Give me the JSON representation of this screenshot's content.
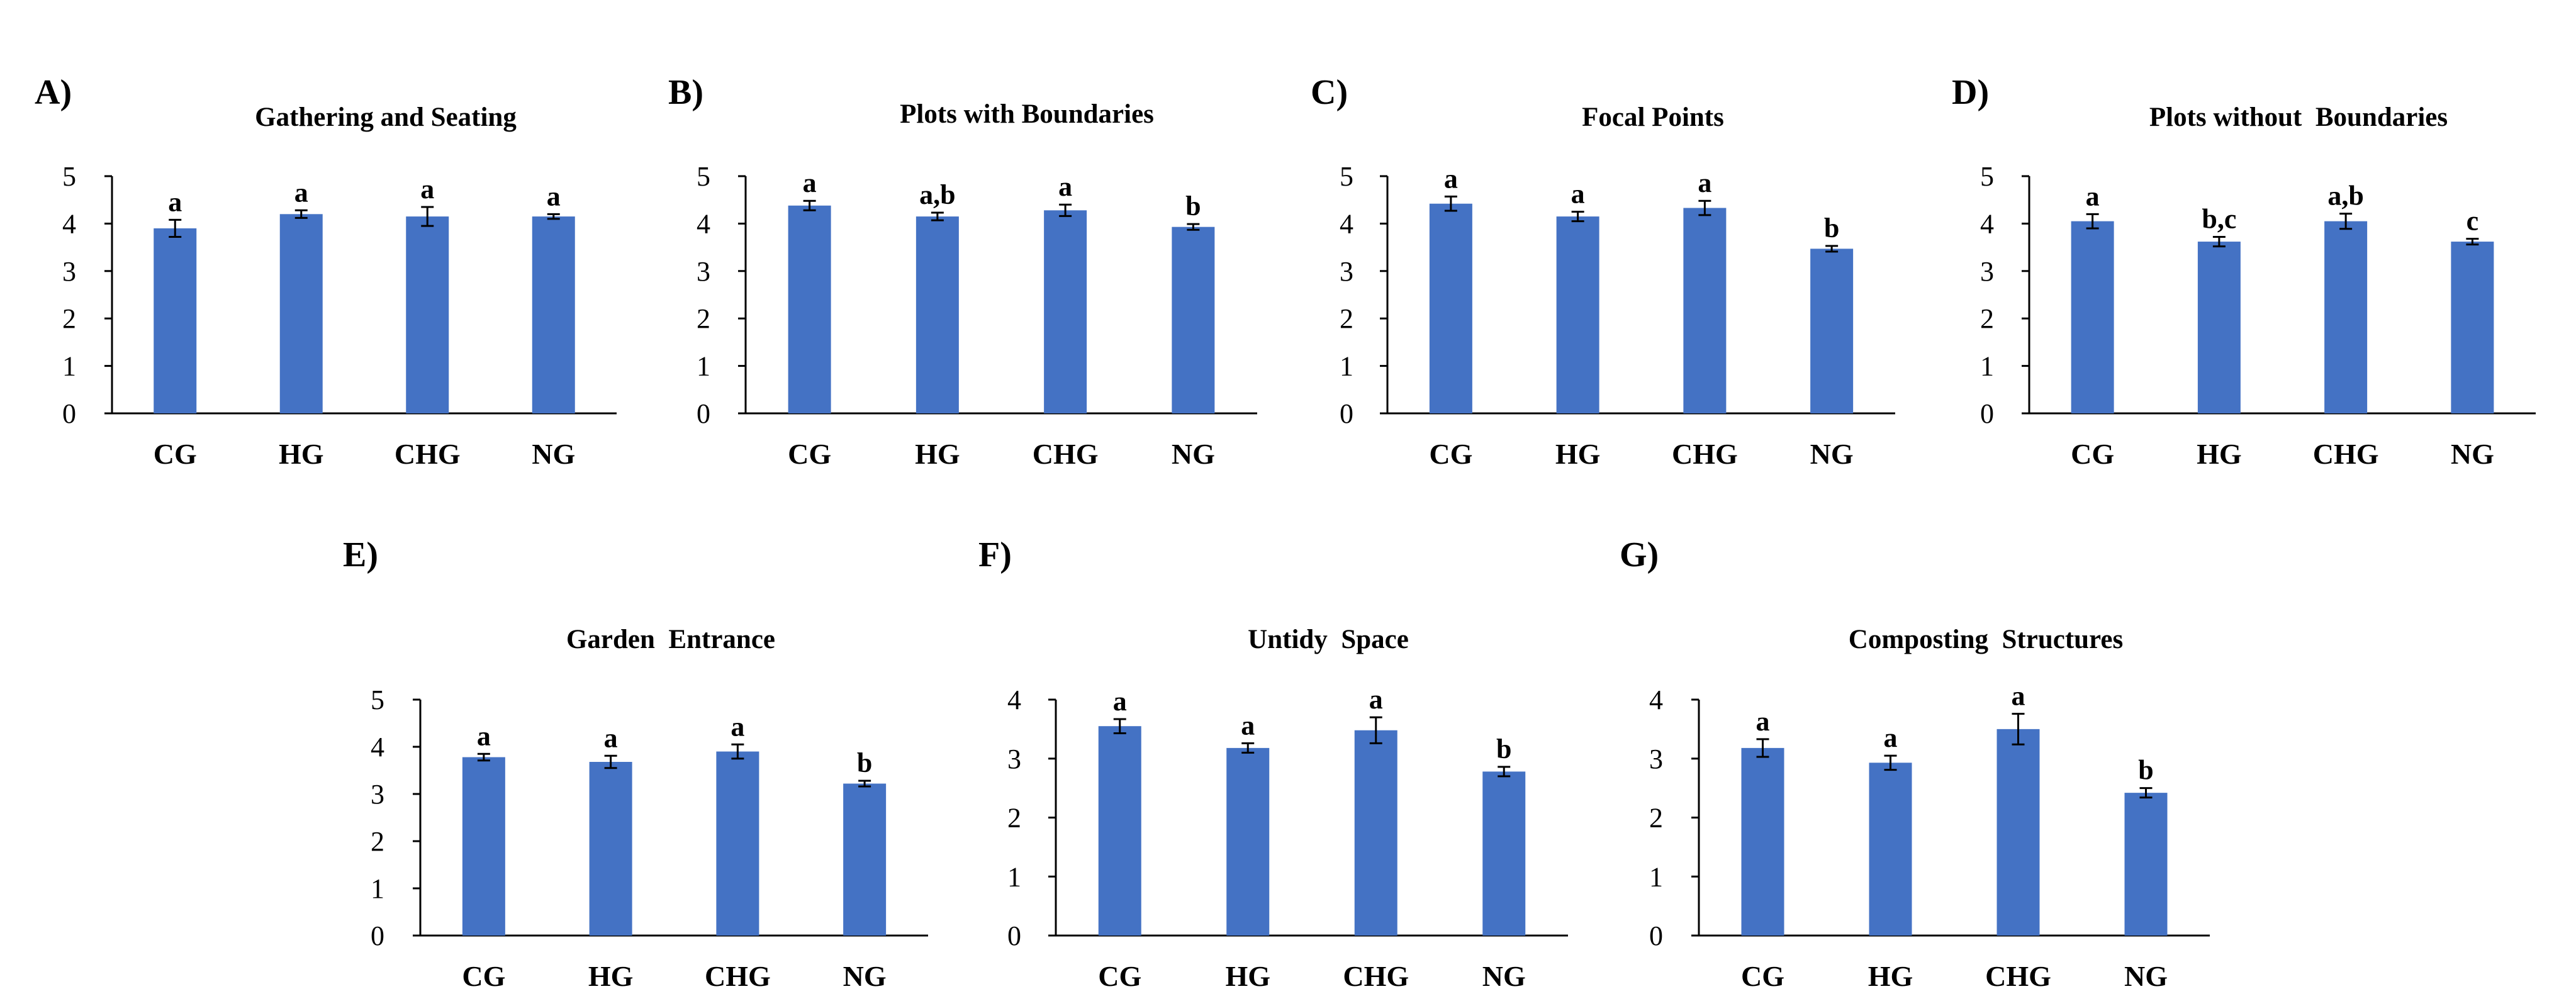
{
  "colors": {
    "bar": "#4472C4",
    "axis": "#000000",
    "error": "#000000",
    "background": "#ffffff"
  },
  "chart_data": [
    {
      "panel": "A)",
      "title": "Gathering and Seating",
      "type": "bar",
      "categories": [
        "CG",
        "HG",
        "CHG",
        "NG"
      ],
      "values": [
        3.9,
        4.2,
        4.15,
        4.15
      ],
      "errors": [
        0.18,
        0.08,
        0.2,
        0.05
      ],
      "labels": [
        "a",
        "a",
        "a",
        "a"
      ],
      "ylim": [
        0,
        5
      ],
      "yticks": [
        "0",
        "1",
        "2",
        "3",
        "4",
        "5"
      ]
    },
    {
      "panel": "B)",
      "title": "Plots with Boundaries",
      "type": "bar",
      "categories": [
        "CG",
        "HG",
        "CHG",
        "NG"
      ],
      "values": [
        4.38,
        4.15,
        4.28,
        3.93
      ],
      "errors": [
        0.1,
        0.08,
        0.12,
        0.06
      ],
      "labels": [
        "a",
        "a,b",
        "a",
        "b"
      ],
      "ylim": [
        0,
        5
      ],
      "yticks": [
        "0",
        "1",
        "2",
        "3",
        "4",
        "5"
      ]
    },
    {
      "panel": "C)",
      "title": "Focal Points",
      "type": "bar",
      "categories": [
        "CG",
        "HG",
        "CHG",
        "NG"
      ],
      "values": [
        4.42,
        4.15,
        4.33,
        3.47
      ],
      "errors": [
        0.15,
        0.1,
        0.15,
        0.06
      ],
      "labels": [
        "a",
        "a",
        "a",
        "b"
      ],
      "ylim": [
        0,
        5
      ],
      "yticks": [
        "0",
        "1",
        "2",
        "3",
        "4",
        "5"
      ]
    },
    {
      "panel": "D)",
      "title": "Plots without  Boundaries",
      "type": "bar",
      "categories": [
        "CG",
        "HG",
        "CHG",
        "NG"
      ],
      "values": [
        4.05,
        3.62,
        4.05,
        3.62
      ],
      "errors": [
        0.15,
        0.1,
        0.16,
        0.06
      ],
      "labels": [
        "a",
        "b,c",
        "a,b",
        "c"
      ],
      "ylim": [
        0,
        5
      ],
      "yticks": [
        "0",
        "1",
        "2",
        "3",
        "4",
        "5"
      ]
    },
    {
      "panel": "E)",
      "title": "Garden  Entrance",
      "type": "bar",
      "categories": [
        "CG",
        "HG",
        "CHG",
        "NG"
      ],
      "values": [
        3.78,
        3.68,
        3.9,
        3.22
      ],
      "errors": [
        0.07,
        0.13,
        0.15,
        0.06
      ],
      "labels": [
        "a",
        "a",
        "a",
        "b"
      ],
      "ylim": [
        0,
        5
      ],
      "yticks": [
        "0",
        "1",
        "2",
        "3",
        "4",
        "5"
      ]
    },
    {
      "panel": "F)",
      "title": "Untidy  Space",
      "type": "bar",
      "categories": [
        "CG",
        "HG",
        "CHG",
        "NG"
      ],
      "values": [
        3.55,
        3.18,
        3.48,
        2.78
      ],
      "errors": [
        0.12,
        0.08,
        0.22,
        0.08
      ],
      "labels": [
        "a",
        "a",
        "a",
        "b"
      ],
      "ylim": [
        0,
        4
      ],
      "yticks": [
        "0",
        "1",
        "2",
        "3",
        "4"
      ]
    },
    {
      "panel": "G)",
      "title": "Composting  Structures",
      "type": "bar",
      "categories": [
        "CG",
        "HG",
        "CHG",
        "NG"
      ],
      "values": [
        3.18,
        2.93,
        3.5,
        2.42
      ],
      "errors": [
        0.15,
        0.12,
        0.26,
        0.08
      ],
      "labels": [
        "a",
        "a",
        "a",
        "b"
      ],
      "ylim": [
        0,
        4
      ],
      "yticks": [
        "0",
        "1",
        "2",
        "3",
        "4"
      ]
    }
  ]
}
